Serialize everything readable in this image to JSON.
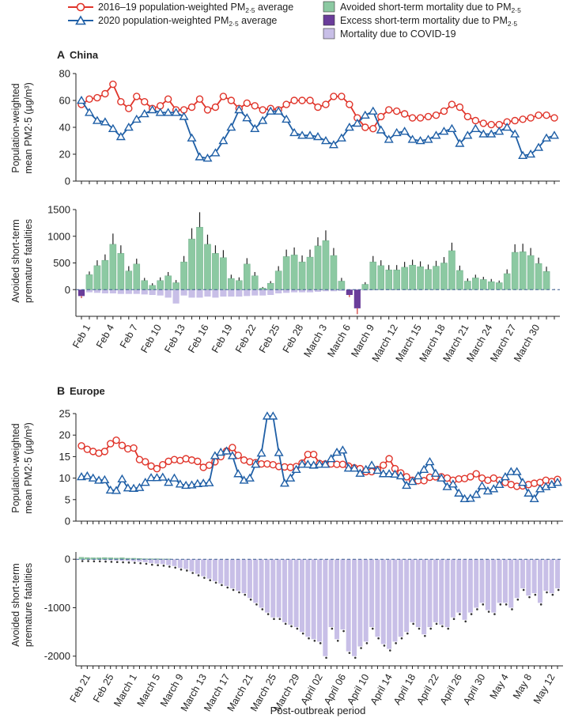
{
  "legend": {
    "line_hist": "2016–19 population-weighted PM",
    "line_2020": "2020 population-weighted PM",
    "avoided": "Avoided short-term mortality due to PM",
    "excess": "Excess short-term mortality due to PM",
    "covid": "Mortality due to COVID-19",
    "pm_sub": "2·5",
    "avg_suffix": " average",
    "colors": {
      "hist": "#e0342a",
      "y2020": "#1f5fa6",
      "avoided": "#8cc9a2",
      "excess": "#6a3d9a",
      "covid": "#c8bfe7"
    }
  },
  "x_axis_title": "Post-outbreak period",
  "chart_data": [
    {
      "id": "china_pm",
      "type": "line",
      "panel_letter": "A",
      "panel_title": "China",
      "ylabel_lines": [
        "Population-weighted",
        "mean PM2·5 (µg/m³)"
      ],
      "ylim": [
        0,
        80
      ],
      "yticks": [
        0,
        20,
        40,
        60,
        80
      ],
      "n_days": 61,
      "series": [
        {
          "name": "2016–19 population-weighted PM2·5 average",
          "values": [
            57,
            61,
            62,
            65,
            72,
            59,
            54,
            63,
            59,
            54,
            56,
            61,
            53,
            53,
            55,
            61,
            53,
            55,
            63,
            60,
            54,
            58,
            56,
            53,
            54,
            53,
            57,
            60,
            60,
            60,
            55,
            57,
            63,
            63,
            57,
            47,
            40,
            39,
            48,
            53,
            52,
            50,
            47,
            47,
            48,
            49,
            52,
            57,
            55,
            48,
            45,
            43,
            42,
            42,
            44,
            45,
            46,
            47,
            49,
            49,
            47
          ]
        },
        {
          "name": "2020 population-weighted PM2·5 average",
          "values": [
            60,
            51,
            45,
            44,
            39,
            33,
            40,
            46,
            50,
            53,
            51,
            51,
            51,
            48,
            32,
            18,
            17,
            21,
            30,
            40,
            53,
            47,
            39,
            45,
            52,
            52,
            46,
            36,
            34,
            34,
            33,
            30,
            27,
            32,
            40,
            43,
            49,
            52,
            38,
            31,
            36,
            37,
            31,
            30,
            31,
            34,
            37,
            39,
            28,
            34,
            39,
            35,
            35,
            37,
            40,
            35,
            19,
            20,
            25,
            32,
            34
          ]
        }
      ],
      "xtick_labels": [
        "Feb 1",
        "Feb 4",
        "Feb 7",
        "Feb 10",
        "Feb 13",
        "Feb 16",
        "Feb 19",
        "Feb 22",
        "Feb 25",
        "Feb 28",
        "March 3",
        "March 6",
        "March 9",
        "March 12",
        "March 15",
        "March 18",
        "March 21",
        "March 24",
        "March 27",
        "March 30"
      ]
    },
    {
      "id": "china_mortality",
      "type": "bar",
      "ylabel_lines": [
        "Avoided short-term",
        "premature fatalities"
      ],
      "ylim": [
        -500,
        1500
      ],
      "yticks": [
        0,
        500,
        1000,
        1500
      ],
      "n_days": 61,
      "avoided": [
        -120,
        280,
        450,
        550,
        850,
        680,
        350,
        480,
        170,
        80,
        170,
        260,
        130,
        520,
        950,
        1170,
        850,
        680,
        600,
        210,
        170,
        480,
        260,
        30,
        120,
        350,
        620,
        650,
        520,
        610,
        820,
        920,
        640,
        160,
        -100,
        -350,
        100,
        520,
        450,
        370,
        370,
        420,
        460,
        430,
        380,
        440,
        500,
        730,
        360,
        160,
        220,
        190,
        150,
        130,
        300,
        700,
        710,
        640,
        490,
        340,
        0
      ],
      "covid": [
        -110,
        -50,
        -60,
        -70,
        -70,
        -80,
        -80,
        -80,
        -90,
        -100,
        -110,
        -150,
        -260,
        -110,
        -150,
        -150,
        -130,
        -150,
        -130,
        -130,
        -130,
        -120,
        -110,
        -110,
        -100,
        -70,
        -60,
        -50,
        -50,
        -50,
        -40,
        -30,
        -30,
        -25,
        -20,
        -20,
        -15,
        -12,
        -10,
        -10,
        -10,
        -8,
        -8,
        -8,
        -6,
        -6,
        -5,
        -5,
        -5,
        -5,
        -4,
        -4,
        -4,
        -4,
        -3,
        -3,
        -3,
        -3,
        -2,
        -2,
        -2
      ],
      "errors": [
        40,
        60,
        100,
        110,
        200,
        150,
        90,
        100,
        50,
        40,
        60,
        70,
        50,
        110,
        200,
        280,
        180,
        150,
        140,
        70,
        60,
        110,
        70,
        20,
        40,
        90,
        130,
        140,
        120,
        140,
        160,
        190,
        140,
        60,
        40,
        110,
        40,
        110,
        100,
        90,
        90,
        100,
        100,
        100,
        90,
        100,
        110,
        150,
        90,
        50,
        60,
        50,
        50,
        40,
        80,
        150,
        150,
        140,
        110,
        90,
        10
      ]
    },
    {
      "id": "europe_pm",
      "type": "line",
      "panel_letter": "B",
      "panel_title": "Europe",
      "ylabel_lines": [
        "Population-weighted",
        "mean PM2·5 (µg/m³)"
      ],
      "ylim": [
        0,
        25
      ],
      "yticks": [
        0,
        5,
        10,
        15,
        20,
        25
      ],
      "n_days": 83,
      "series": [
        {
          "name": "2016–19 population-weighted PM2·5 average",
          "values": [
            17.5,
            16.7,
            16.2,
            15.8,
            16.2,
            18,
            18.8,
            17.6,
            16.8,
            17,
            14.3,
            13.8,
            12.8,
            12.2,
            13.1,
            13.9,
            14.3,
            14.1,
            14.5,
            14.2,
            13.9,
            12.5,
            13,
            13.8,
            15,
            16.3,
            17.1,
            15.3,
            14.2,
            13.8,
            13.6,
            13.3,
            13.3,
            13.1,
            12.7,
            12.6,
            12.5,
            12.7,
            13.5,
            15.5,
            15.5,
            13.4,
            13.3,
            13.3,
            13.2,
            13.2,
            12.8,
            12.4,
            12.2,
            11.5,
            11.5,
            12,
            13,
            14.5,
            12.2,
            11.2,
            10.3,
            9.5,
            9.4,
            9.4,
            10.2,
            10.3,
            10.3,
            10,
            9.5,
            9.8,
            9.9,
            10.3,
            11,
            10,
            9.5,
            10,
            9.5,
            9,
            8.5,
            8.1,
            8.2,
            8.5,
            8.8,
            9,
            9.5,
            9.2,
            9.7
          ]
        },
        {
          "name": "2020 population-weighted PM2·5 average",
          "values": [
            10.3,
            10.5,
            10,
            9.5,
            9.6,
            7.2,
            7.1,
            9.8,
            7.7,
            7.6,
            7.8,
            9,
            10.1,
            10.1,
            10.2,
            9,
            10,
            8.6,
            8.3,
            8.4,
            8.7,
            8.8,
            8.9,
            15.2,
            16,
            16.3,
            15.2,
            11,
            9.5,
            10,
            13.2,
            15.8,
            24.4,
            24.4,
            15.9,
            8.8,
            10,
            12,
            13.2,
            13.2,
            13,
            13.2,
            13.2,
            14.5,
            16,
            16.5,
            12.3,
            12.3,
            11.1,
            12,
            13,
            11.8,
            11,
            11,
            10.9,
            10.5,
            8.3,
            9.2,
            10.5,
            12,
            13.8,
            11.1,
            10,
            8,
            8.6,
            6.5,
            5.2,
            5.3,
            6.2,
            8.2,
            7,
            7.5,
            8.5,
            10.3,
            11.5,
            11.5,
            9,
            6.5,
            5.2,
            7.5,
            8,
            8.5,
            9
          ]
        }
      ]
    },
    {
      "id": "europe_mortality",
      "type": "bar",
      "ylabel_lines": [
        "Avoided short-term",
        "premature fatalities"
      ],
      "ylim": [
        -2200,
        150
      ],
      "yticks": [
        -2000,
        -1000,
        0
      ],
      "n_days": 83,
      "avoided": [
        40,
        35,
        30,
        30,
        35,
        30,
        25,
        30,
        20,
        20,
        15,
        10,
        10,
        10,
        5,
        5,
        0,
        0,
        0,
        0,
        0,
        0,
        0,
        0,
        0,
        0,
        0,
        0,
        0,
        0,
        0,
        0,
        0,
        0,
        0,
        0,
        0,
        0,
        0,
        0,
        0,
        0,
        0,
        0,
        0,
        0,
        0,
        0,
        0,
        0,
        0,
        0,
        0,
        0,
        0,
        0,
        0,
        0,
        0,
        0,
        0,
        0,
        0,
        0,
        0,
        0,
        0,
        0,
        0,
        0,
        0,
        0,
        0,
        0,
        0,
        0,
        0,
        0,
        0,
        0,
        0,
        0,
        0
      ],
      "covid": [
        -5,
        -5,
        -10,
        -10,
        -15,
        -20,
        -25,
        -30,
        -35,
        -40,
        -50,
        -60,
        -80,
        -90,
        -100,
        -120,
        -140,
        -180,
        -200,
        -250,
        -300,
        -350,
        -400,
        -450,
        -500,
        -550,
        -600,
        -650,
        -700,
        -800,
        -900,
        -1000,
        -1100,
        -1200,
        -1200,
        -1300,
        -1350,
        -1400,
        -1500,
        -1600,
        -1650,
        -1700,
        -2000,
        -1400,
        -1650,
        -1450,
        -1900,
        -2000,
        -1800,
        -1700,
        -1400,
        -1600,
        -1750,
        -1850,
        -1700,
        -1600,
        -1500,
        -1300,
        -1400,
        -1550,
        -1400,
        -1300,
        -1350,
        -1400,
        -1200,
        -1100,
        -1250,
        -1100,
        -1000,
        -900,
        -1050,
        -1100,
        -900,
        -900,
        -1000,
        -800,
        -600,
        -750,
        -700,
        -900,
        -650,
        -700,
        -600
      ],
      "xtick_labels": [
        "Feb 21",
        "Feb 25",
        "March 1",
        "March 5",
        "March 9",
        "March 13",
        "March 17",
        "March 21",
        "March 25",
        "March 29",
        "April 02",
        "April 06",
        "April 10",
        "April 14",
        "April 18",
        "April 22",
        "April 26",
        "April 30",
        "May 4",
        "May 8",
        "May 12"
      ]
    }
  ]
}
